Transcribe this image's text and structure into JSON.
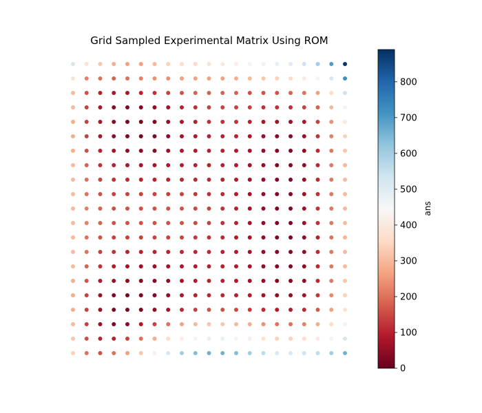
{
  "chart_data": {
    "type": "scatter",
    "title": "Grid Sampled Experimental Matrix Using ROM",
    "xlabel": "",
    "ylabel": "",
    "axes_visible": false,
    "grid": {
      "x": [
        0,
        1,
        2,
        3,
        4,
        5,
        6,
        7,
        8,
        9,
        10,
        11,
        12,
        13,
        14,
        15,
        16,
        17,
        18,
        19,
        20
      ],
      "y": [
        0,
        1,
        2,
        3,
        4,
        5,
        6,
        7,
        8,
        9,
        10,
        11,
        12,
        13,
        14,
        15,
        16,
        17,
        18,
        19,
        20
      ]
    },
    "z_rows_top_to_bottom": [
      [
        520,
        380,
        320,
        280,
        260,
        260,
        300,
        340,
        360,
        360,
        380,
        400,
        420,
        440,
        460,
        480,
        500,
        540,
        600,
        700,
        880
      ],
      [
        380,
        220,
        200,
        180,
        200,
        220,
        240,
        240,
        260,
        260,
        260,
        260,
        280,
        300,
        320,
        340,
        360,
        400,
        440,
        520,
        720
      ],
      [
        300,
        160,
        100,
        80,
        80,
        100,
        120,
        140,
        160,
        180,
        180,
        180,
        180,
        160,
        160,
        160,
        180,
        200,
        260,
        360,
        540
      ],
      [
        300,
        140,
        80,
        40,
        30,
        30,
        50,
        70,
        100,
        120,
        140,
        140,
        140,
        140,
        120,
        120,
        120,
        140,
        180,
        300,
        460
      ],
      [
        280,
        140,
        80,
        40,
        20,
        20,
        30,
        50,
        80,
        100,
        120,
        120,
        120,
        100,
        80,
        70,
        60,
        80,
        140,
        240,
        400
      ],
      [
        280,
        140,
        80,
        50,
        30,
        20,
        30,
        50,
        70,
        90,
        100,
        100,
        100,
        80,
        60,
        40,
        40,
        60,
        120,
        220,
        340
      ],
      [
        280,
        160,
        100,
        70,
        50,
        40,
        40,
        60,
        80,
        90,
        100,
        100,
        90,
        70,
        50,
        30,
        30,
        50,
        110,
        210,
        320
      ],
      [
        300,
        180,
        120,
        100,
        80,
        70,
        70,
        80,
        90,
        100,
        100,
        100,
        90,
        70,
        50,
        30,
        30,
        50,
        110,
        210,
        300
      ],
      [
        300,
        200,
        140,
        120,
        110,
        100,
        100,
        100,
        110,
        110,
        110,
        100,
        90,
        70,
        50,
        30,
        30,
        50,
        110,
        210,
        300
      ],
      [
        300,
        200,
        160,
        140,
        140,
        140,
        140,
        140,
        140,
        130,
        120,
        110,
        90,
        70,
        50,
        30,
        30,
        60,
        120,
        210,
        300
      ],
      [
        300,
        220,
        180,
        160,
        160,
        160,
        160,
        160,
        160,
        150,
        140,
        120,
        100,
        70,
        50,
        30,
        30,
        60,
        120,
        210,
        300
      ],
      [
        300,
        220,
        180,
        160,
        160,
        160,
        160,
        160,
        160,
        150,
        140,
        120,
        100,
        70,
        50,
        30,
        30,
        60,
        120,
        210,
        300
      ],
      [
        300,
        200,
        160,
        140,
        140,
        140,
        140,
        140,
        140,
        130,
        120,
        110,
        90,
        70,
        50,
        30,
        20,
        40,
        100,
        200,
        290
      ],
      [
        300,
        200,
        140,
        120,
        100,
        100,
        100,
        100,
        110,
        110,
        110,
        100,
        90,
        70,
        50,
        30,
        30,
        50,
        110,
        210,
        300
      ],
      [
        300,
        180,
        120,
        90,
        70,
        60,
        60,
        70,
        80,
        90,
        100,
        100,
        90,
        70,
        50,
        30,
        30,
        50,
        110,
        210,
        300
      ],
      [
        280,
        160,
        90,
        60,
        40,
        30,
        30,
        50,
        70,
        90,
        100,
        100,
        90,
        70,
        50,
        30,
        30,
        50,
        110,
        210,
        320
      ],
      [
        280,
        140,
        60,
        30,
        20,
        20,
        30,
        50,
        80,
        100,
        110,
        110,
        100,
        90,
        70,
        50,
        50,
        70,
        130,
        230,
        340
      ],
      [
        280,
        140,
        60,
        30,
        20,
        20,
        40,
        70,
        110,
        140,
        160,
        160,
        150,
        130,
        110,
        90,
        90,
        110,
        170,
        260,
        380
      ],
      [
        300,
        140,
        60,
        30,
        40,
        80,
        140,
        200,
        260,
        300,
        320,
        320,
        300,
        280,
        240,
        200,
        200,
        220,
        280,
        360,
        460
      ],
      [
        320,
        160,
        100,
        100,
        140,
        200,
        280,
        360,
        420,
        460,
        480,
        480,
        460,
        420,
        380,
        340,
        340,
        360,
        400,
        460,
        520
      ],
      [
        340,
        200,
        160,
        200,
        260,
        320,
        420,
        520,
        600,
        640,
        660,
        660,
        640,
        600,
        560,
        520,
        520,
        540,
        560,
        600,
        660
      ]
    ],
    "colorbar": {
      "label": "ans",
      "colormap": "RdBu",
      "range": [
        0,
        890
      ],
      "ticks": [
        0,
        100,
        200,
        300,
        400,
        500,
        600,
        700,
        800
      ]
    },
    "legend": "none"
  }
}
